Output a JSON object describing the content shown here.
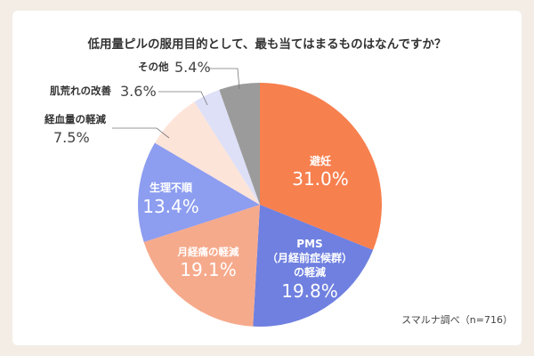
{
  "chart_data": {
    "type": "pie",
    "title": "低用量ピルの服用目的として、最も当てはまるものはなんですか？",
    "slices": [
      {
        "label": "避妊",
        "value": 31.0,
        "display": "31.0%",
        "color": "#f7804f"
      },
      {
        "label": "PMS（月経前症候群）の軽減",
        "label_lines": [
          "PMS",
          "（月経前症候群）",
          "の軽減"
        ],
        "value": 19.8,
        "display": "19.8%",
        "color": "#6f80e0"
      },
      {
        "label": "月経痛の軽減",
        "value": 19.1,
        "display": "19.1%",
        "color": "#f6aa8c"
      },
      {
        "label": "生理不順",
        "value": 13.4,
        "display": "13.4%",
        "color": "#8d9df0"
      },
      {
        "label": "経血量の軽減",
        "value": 7.5,
        "display": "7.5%",
        "color": "#fde4d9"
      },
      {
        "label": "肌荒れの改善",
        "value": 3.6,
        "display": "3.6%",
        "color": "#dde0f7"
      },
      {
        "label": "その他",
        "value": 5.4,
        "display": "5.4%",
        "color": "#9b9b9b"
      }
    ],
    "source": "スマルナ調べ（n=716）"
  }
}
